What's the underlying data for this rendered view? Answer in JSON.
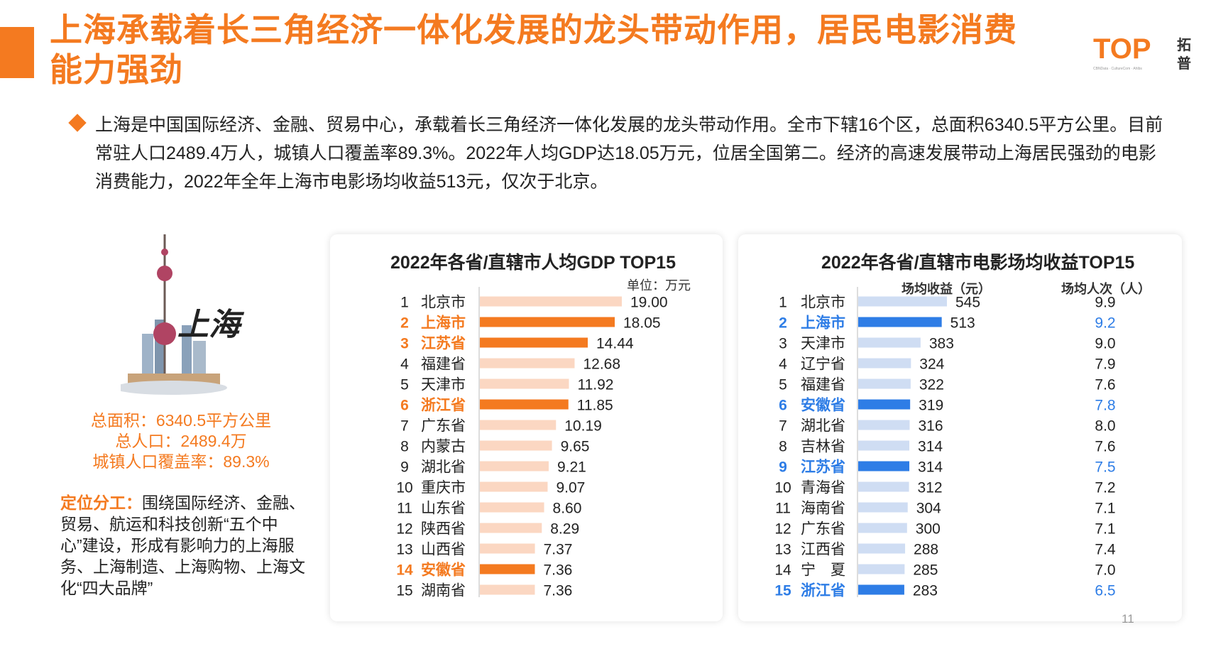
{
  "title": "上海承载着长三角经济一体化发展的龙头带动作用，居民电影消费能力强劲",
  "logo": {
    "mark": "TOP",
    "side_text": "拓普",
    "tagline": "CBNData · CultureCom · Ahlbs"
  },
  "intro": "上海是中国国际经济、金融、贸易中心，承载着长三角经济一体化发展的龙头带动作用。全市下辖16个区，总面积6340.5平方公里。目前常驻人口2489.4万人，城镇人口覆盖率89.3%。2022年人均GDP达18.05万元，位居全国第二。经济的高速发展带动上海居民强劲的电影消费能力，2022年全年上海市电影场均收益513元，仅次于北京。",
  "city": {
    "name": "上海",
    "stats": [
      "总面积：6340.5平方公里",
      "总人口：2489.4万",
      "城镇人口覆盖率：89.3%"
    ],
    "role_label": "定位分工：",
    "role_text": "围绕国际经济、金融、贸易、航运和科技创新“五个中心”建设，形成有影响力的上海服务、上海制造、上海购物、上海文化“四大品牌”"
  },
  "colors": {
    "accent": "#f47a20",
    "gdp_highlight": "#f47a20",
    "gdp_normal": "#fbd7c2",
    "box_highlight": "#2e7de6",
    "box_normal": "#cfddf3",
    "box_highlight_text": "#2e7de6"
  },
  "page_number": "11",
  "chart_data": [
    {
      "type": "bar",
      "orientation": "horizontal",
      "title": "2022年各省/直辖市人均GDP TOP15",
      "unit": "单位：万元",
      "ranks": [
        "1",
        "2",
        "3",
        "4",
        "5",
        "6",
        "7",
        "8",
        "9",
        "10",
        "11",
        "12",
        "13",
        "14",
        "15"
      ],
      "categories": [
        "北京市",
        "上海市",
        "江苏省",
        "福建省",
        "天津市",
        "浙江省",
        "广东省",
        "内蒙古",
        "湖北省",
        "重庆市",
        "山东省",
        "陕西省",
        "山西省",
        "安徽省",
        "湖南省"
      ],
      "values": [
        19.0,
        18.05,
        14.44,
        12.68,
        11.92,
        11.85,
        10.19,
        9.65,
        9.21,
        9.07,
        8.6,
        8.29,
        7.37,
        7.36,
        7.36
      ],
      "value_labels": [
        "19.00",
        "18.05",
        "14.44",
        "12.68",
        "11.92",
        "11.85",
        "10.19",
        "9.65",
        "9.21",
        "9.07",
        "8.60",
        "8.29",
        "7.37",
        "7.36",
        "7.36"
      ],
      "highlighted": [
        "上海市",
        "江苏省",
        "浙江省",
        "安徽省"
      ],
      "xlim": [
        0,
        19
      ]
    },
    {
      "type": "bar",
      "orientation": "horizontal",
      "title": "2022年各省/直辖市电影场均收益TOP15",
      "column_headers": [
        "场均收益（元）",
        "场均人次（人）"
      ],
      "ranks": [
        "1",
        "2",
        "3",
        "4",
        "5",
        "6",
        "7",
        "8",
        "9",
        "10",
        "11",
        "12",
        "13",
        "14",
        "15"
      ],
      "categories": [
        "北京市",
        "上海市",
        "天津市",
        "辽宁省",
        "福建省",
        "安徽省",
        "湖北省",
        "吉林省",
        "江苏省",
        "青海省",
        "海南省",
        "广东省",
        "江西省",
        "宁　夏",
        "浙江省"
      ],
      "values": [
        545,
        513,
        383,
        324,
        322,
        319,
        316,
        314,
        314,
        312,
        304,
        300,
        288,
        285,
        283
      ],
      "value_labels": [
        "545",
        "513",
        "383",
        "324",
        "322",
        "319",
        "316",
        "314",
        "314",
        "312",
        "304",
        "300",
        "288",
        "285",
        "283"
      ],
      "secondary_series": {
        "name": "场均人次（人）",
        "values": [
          9.9,
          9.2,
          9.0,
          7.9,
          7.6,
          7.8,
          8.0,
          7.6,
          7.5,
          7.2,
          7.1,
          7.1,
          7.4,
          7.0,
          6.5
        ],
        "labels": [
          "9.9",
          "9.2",
          "9.0",
          "7.9",
          "7.6",
          "7.8",
          "8.0",
          "7.6",
          "7.5",
          "7.2",
          "7.1",
          "7.1",
          "7.4",
          "7.0",
          "6.5"
        ]
      },
      "highlighted": [
        "上海市",
        "安徽省",
        "江苏省",
        "浙江省"
      ],
      "xlim": [
        0,
        545
      ]
    }
  ]
}
